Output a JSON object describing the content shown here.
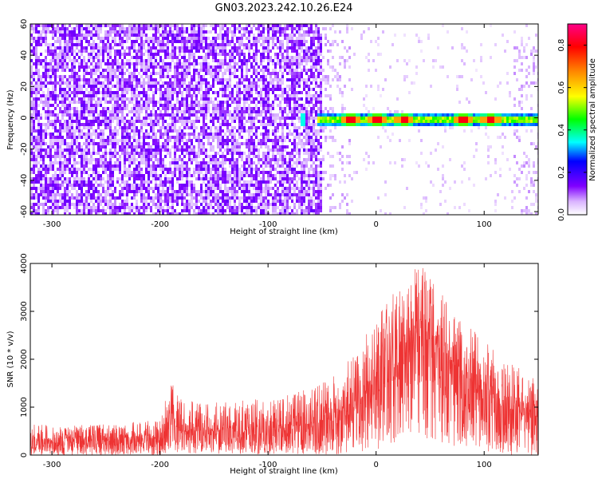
{
  "title": "GN03.2023.242.10.26.E24",
  "chart_data": [
    {
      "type": "heatmap",
      "xlabel": "Height of straight line (km)",
      "ylabel": "Frequency (Hz)",
      "xlim": [
        -320,
        150
      ],
      "ylim": [
        -62,
        60
      ],
      "xticks": [
        -300,
        -200,
        -100,
        0,
        100
      ],
      "yticks": [
        -60,
        -40,
        -20,
        0,
        20,
        40,
        60
      ],
      "colorbar": {
        "label": "Normalized spectral amplitude",
        "range": [
          0.0,
          0.9
        ],
        "ticks": [
          "0.0",
          "0.2",
          "0.4",
          "0.6",
          "0.8"
        ],
        "colors": [
          "#ffffff",
          "#7b00ff",
          "#0000ff",
          "#00ffff",
          "#00ff00",
          "#ffff00",
          "#ff8800",
          "#ff0000",
          "#ff0088"
        ]
      },
      "features": {
        "broadband_noise_x_range": [
          -320,
          -50
        ],
        "narrow_band_center_hz": 0,
        "narrow_band_x_range": [
          -55,
          150
        ],
        "peak_amplitude_near_x": [
          -25,
          0,
          25,
          80,
          105
        ]
      },
      "grid": false
    },
    {
      "type": "line",
      "xlabel": "Height of straight line (km)",
      "ylabel": "SNR (10 * v/v)",
      "xlim": [
        -320,
        150
      ],
      "ylim": [
        0,
        4000
      ],
      "xticks": [
        -300,
        -200,
        -100,
        0,
        100
      ],
      "yticks": [
        0,
        1000,
        2000,
        3000,
        4000
      ],
      "color": "#ee3333",
      "envelope": [
        {
          "x": -320,
          "lo": 0,
          "mid": 280,
          "hi": 650
        },
        {
          "x": -280,
          "lo": 0,
          "mid": 290,
          "hi": 620
        },
        {
          "x": -240,
          "lo": 0,
          "mid": 300,
          "hi": 650
        },
        {
          "x": -200,
          "lo": 0,
          "mid": 360,
          "hi": 750
        },
        {
          "x": -190,
          "lo": 80,
          "mid": 700,
          "hi": 1550
        },
        {
          "x": -180,
          "lo": 40,
          "mid": 520,
          "hi": 1150
        },
        {
          "x": -150,
          "lo": 30,
          "mid": 500,
          "hi": 1100
        },
        {
          "x": -120,
          "lo": 20,
          "mid": 500,
          "hi": 1150
        },
        {
          "x": -90,
          "lo": 20,
          "mid": 550,
          "hi": 1200
        },
        {
          "x": -60,
          "lo": 10,
          "mid": 650,
          "hi": 1400
        },
        {
          "x": -40,
          "lo": 10,
          "mid": 750,
          "hi": 1650
        },
        {
          "x": -20,
          "lo": 30,
          "mid": 1000,
          "hi": 2100
        },
        {
          "x": 0,
          "lo": 100,
          "mid": 1600,
          "hi": 2900
        },
        {
          "x": 20,
          "lo": 250,
          "mid": 2200,
          "hi": 3500
        },
        {
          "x": 40,
          "lo": 400,
          "mid": 2600,
          "hi": 4000
        },
        {
          "x": 60,
          "lo": 250,
          "mid": 2200,
          "hi": 3400
        },
        {
          "x": 80,
          "lo": 100,
          "mid": 1700,
          "hi": 2800
        },
        {
          "x": 100,
          "lo": 30,
          "mid": 1300,
          "hi": 2400
        },
        {
          "x": 120,
          "lo": 10,
          "mid": 1000,
          "hi": 2000
        },
        {
          "x": 140,
          "lo": 0,
          "mid": 800,
          "hi": 1700
        },
        {
          "x": 150,
          "lo": 0,
          "mid": 750,
          "hi": 1600
        }
      ],
      "grid": false
    }
  ]
}
